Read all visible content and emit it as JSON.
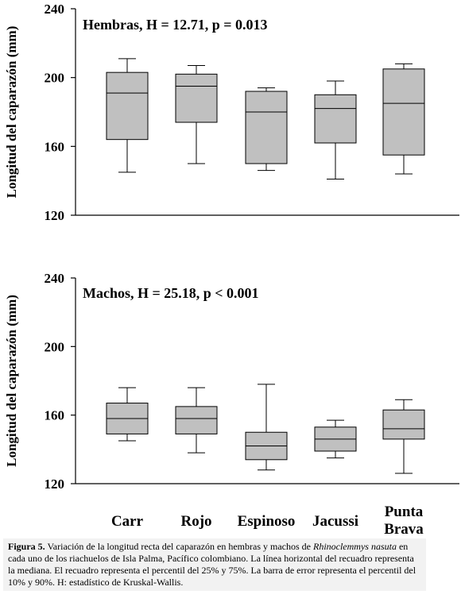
{
  "chart_data": [
    {
      "type": "box",
      "annotation": "Hembras,  H = 12.71, p = 0.013",
      "ylabel": "Longitud del caparazón (mm)",
      "ylim": [
        120,
        240
      ],
      "yticks": [
        120,
        160,
        200,
        240
      ],
      "categories": [
        "Carr",
        "Rojo",
        "Espinoso",
        "Jacussi",
        "Punta Brava"
      ],
      "boxes": [
        {
          "p10": 145,
          "q1": 164,
          "median": 191,
          "q3": 203,
          "p90": 211
        },
        {
          "p10": 150,
          "q1": 174,
          "median": 195,
          "q3": 202,
          "p90": 207
        },
        {
          "p10": 146,
          "q1": 150,
          "median": 180,
          "q3": 192,
          "p90": 194
        },
        {
          "p10": 141,
          "q1": 162,
          "median": 182,
          "q3": 190,
          "p90": 198
        },
        {
          "p10": 144,
          "q1": 155,
          "median": 185,
          "q3": 205,
          "p90": 208
        }
      ]
    },
    {
      "type": "box",
      "annotation": "Machos, H = 25.18, p < 0.001",
      "ylabel": "Longitud del caparazón  (mm)",
      "ylim": [
        120,
        240
      ],
      "yticks": [
        120,
        160,
        200,
        240
      ],
      "categories": [
        "Carr",
        "Rojo",
        "Espinoso",
        "Jacussi",
        "Punta Brava"
      ],
      "category_labels": [
        [
          "Carr"
        ],
        [
          "Rojo"
        ],
        [
          "Espinoso"
        ],
        [
          "Jacussi"
        ],
        [
          "Punta",
          "Brava"
        ]
      ],
      "boxes": [
        {
          "p10": 145,
          "q1": 149,
          "median": 158,
          "q3": 167,
          "p90": 176
        },
        {
          "p10": 138,
          "q1": 149,
          "median": 158,
          "q3": 165,
          "p90": 176
        },
        {
          "p10": 128,
          "q1": 134,
          "median": 142,
          "q3": 150,
          "p90": 178
        },
        {
          "p10": 135,
          "q1": 139,
          "median": 146,
          "q3": 153,
          "p90": 157
        },
        {
          "p10": 126,
          "q1": 146,
          "median": 152,
          "q3": 163,
          "p90": 169
        }
      ]
    }
  ],
  "caption": {
    "label": "Figura 5.",
    "text_before": " Variación de la longitud recta del caparazón en hembras y machos de ",
    "species": "Rhinoclemmys nasuta",
    "text_after": " en cada uno de los riachuelos de Isla Palma, Pacífico colombiano. La línea horizontal del recuadro representa la mediana. El recuadro representa el percentil del 25% y 75%. La barra de error representa el percentil del 10% y 90%. H: estadístico de Kruskal-Wallis."
  },
  "style": {
    "box_fill": "#c0c0c0",
    "stroke": "#000000",
    "caption_bg": "#f2f2f2"
  }
}
